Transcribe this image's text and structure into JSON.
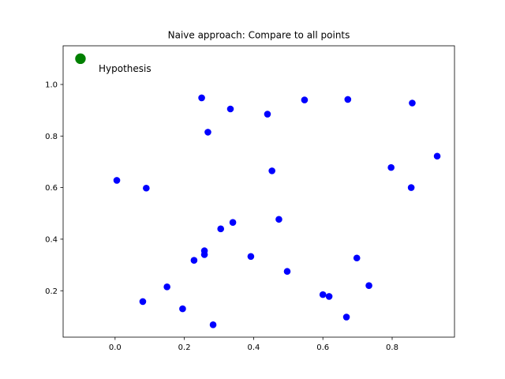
{
  "chart_data": {
    "type": "scatter",
    "title": "Naive approach: Compare to all points",
    "xlabel": "",
    "ylabel": "",
    "xlim": [
      -0.15,
      0.98
    ],
    "ylim": [
      0.02,
      1.15
    ],
    "xticks": [
      0.0,
      0.2,
      0.4,
      0.6,
      0.8
    ],
    "yticks": [
      0.2,
      0.4,
      0.6,
      0.8,
      1.0
    ],
    "xtick_labels": [
      "0.0",
      "0.2",
      "0.4",
      "0.6",
      "0.8"
    ],
    "ytick_labels": [
      "0.2",
      "0.4",
      "0.6",
      "0.8",
      "1.0"
    ],
    "grid": false,
    "series": [
      {
        "color": "#0000ff",
        "points": [
          [
            0.005,
            0.628
          ],
          [
            0.09,
            0.598
          ],
          [
            0.08,
            0.158
          ],
          [
            0.15,
            0.215
          ],
          [
            0.195,
            0.13
          ],
          [
            0.228,
            0.318
          ],
          [
            0.25,
            0.948
          ],
          [
            0.258,
            0.355
          ],
          [
            0.258,
            0.34
          ],
          [
            0.268,
            0.815
          ],
          [
            0.283,
            0.068
          ],
          [
            0.305,
            0.44
          ],
          [
            0.333,
            0.905
          ],
          [
            0.34,
            0.465
          ],
          [
            0.392,
            0.333
          ],
          [
            0.44,
            0.885
          ],
          [
            0.453,
            0.665
          ],
          [
            0.473,
            0.477
          ],
          [
            0.497,
            0.275
          ],
          [
            0.547,
            0.94
          ],
          [
            0.6,
            0.185
          ],
          [
            0.618,
            0.178
          ],
          [
            0.668,
            0.098
          ],
          [
            0.672,
            0.942
          ],
          [
            0.698,
            0.327
          ],
          [
            0.733,
            0.22
          ],
          [
            0.797,
            0.678
          ],
          [
            0.855,
            0.6
          ],
          [
            0.858,
            0.928
          ],
          [
            0.93,
            0.722
          ]
        ]
      }
    ],
    "hypothesis": {
      "label": "Hypothesis",
      "color": "#008000",
      "point": [
        -0.1,
        1.1
      ]
    }
  }
}
